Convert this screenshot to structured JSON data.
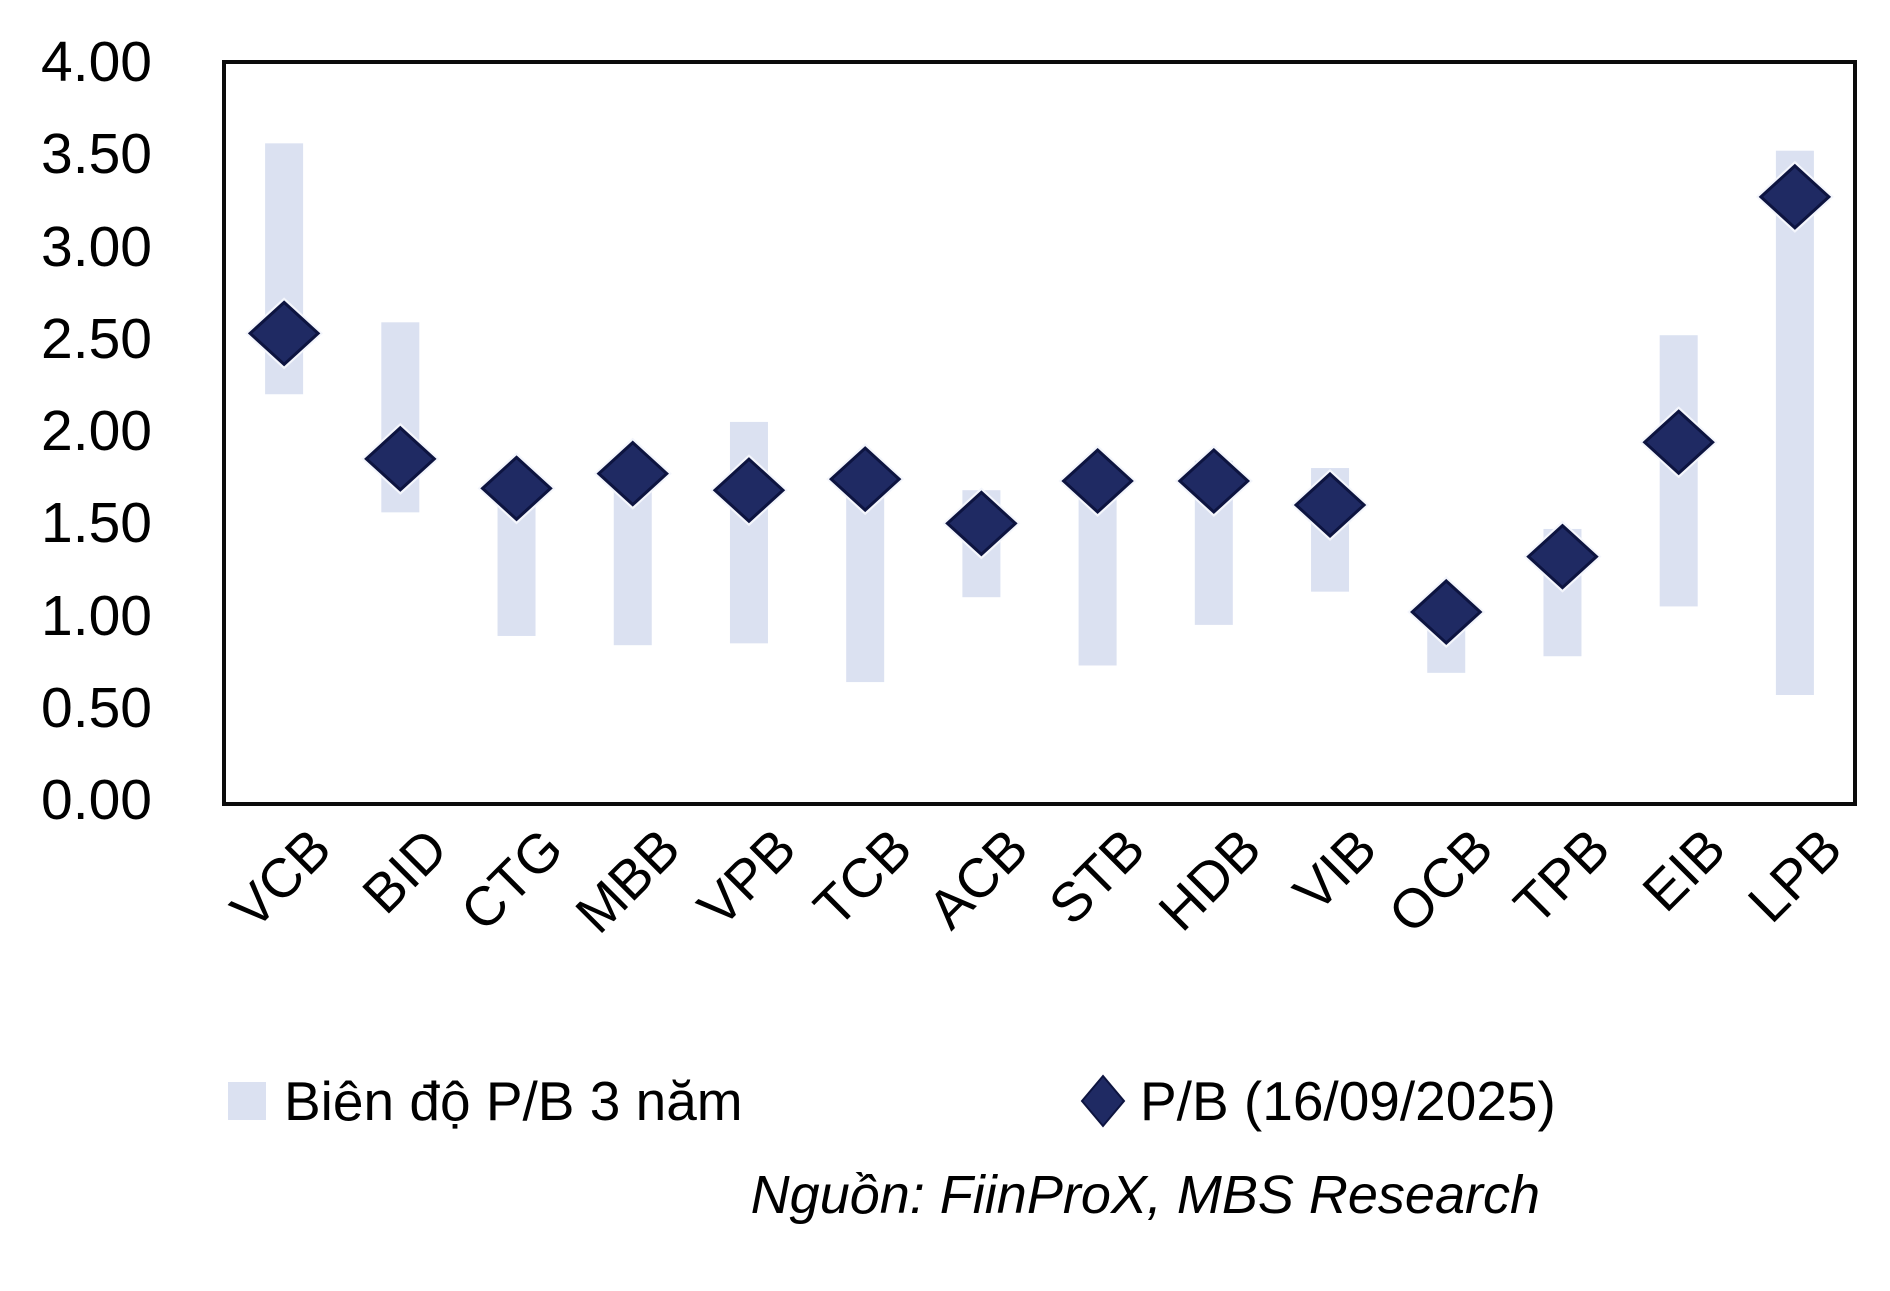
{
  "chart_data": {
    "type": "bar",
    "subtype": "floating-range-bars-with-diamond-markers",
    "title": "",
    "xlabel": "",
    "ylabel": "",
    "categories": [
      "VCB",
      "BID",
      "CTG",
      "MBB",
      "VPB",
      "TCB",
      "ACB",
      "STB",
      "HDB",
      "VIB",
      "OCB",
      "TPB",
      "EIB",
      "LPB"
    ],
    "series": [
      {
        "name": "Biên độ P/B 3 năm",
        "type": "range-bar",
        "low": [
          2.21,
          1.57,
          0.9,
          0.85,
          0.86,
          0.65,
          1.11,
          0.74,
          0.96,
          1.14,
          0.7,
          0.79,
          1.06,
          0.58
        ],
        "high": [
          3.57,
          2.6,
          1.76,
          1.84,
          2.06,
          1.81,
          1.69,
          1.8,
          1.85,
          1.81,
          1.1,
          1.48,
          2.53,
          3.53
        ]
      },
      {
        "name": "P/B (16/09/2025)",
        "type": "scatter-diamond",
        "values": [
          2.54,
          1.86,
          1.7,
          1.78,
          1.69,
          1.75,
          1.51,
          1.74,
          1.74,
          1.61,
          1.03,
          1.33,
          1.95,
          3.28
        ]
      }
    ],
    "ylim": [
      0,
      4
    ],
    "ytick_step": 0.5,
    "ytick_labels": [
      "0.00",
      "0.50",
      "1.00",
      "1.50",
      "2.00",
      "2.50",
      "3.00",
      "3.50",
      "4.00"
    ],
    "grid": false,
    "legend_position": "bottom"
  },
  "legend": {
    "range_label": "Biên độ P/B 3 năm",
    "pb_label": "P/B (16/09/2025)"
  },
  "source_note": "Nguồn: FiinProX, MBS Research",
  "colors": {
    "range_bar": "#dbe1f1",
    "marker": "#1f2a63",
    "marker_border": "#0d1440",
    "marker_halo": "#f4f6fc",
    "axis_frame": "#0b0b0b",
    "text": "#000000"
  }
}
